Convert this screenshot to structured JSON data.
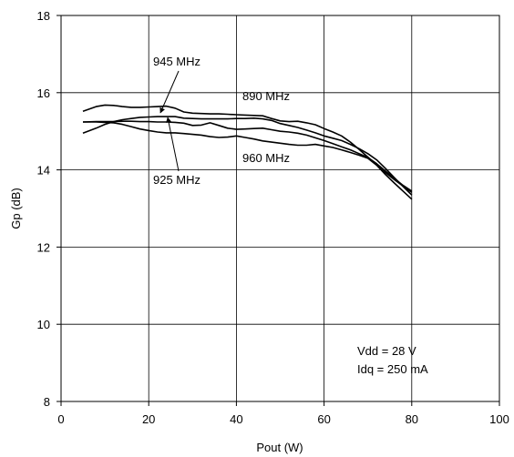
{
  "chart_data": {
    "type": "line",
    "title": "",
    "xlabel": "Pout (W)",
    "ylabel": "Gp (dB)",
    "xlim": [
      0,
      100
    ],
    "ylim": [
      8,
      18
    ],
    "xticks": [
      0,
      20,
      40,
      60,
      80,
      100
    ],
    "yticks": [
      8,
      10,
      12,
      14,
      16,
      18
    ],
    "grid": true,
    "series": [
      {
        "name": "945 MHz",
        "x": [
          5,
          8,
          10,
          12,
          14,
          16,
          18,
          20,
          22,
          24,
          26,
          28,
          30,
          32,
          34,
          36,
          38,
          40,
          42,
          44,
          46,
          48,
          50,
          52,
          54,
          56,
          58,
          60,
          62,
          64,
          66,
          68,
          70,
          72,
          74,
          76,
          78,
          80
        ],
        "y": [
          15.52,
          15.64,
          15.68,
          15.67,
          15.64,
          15.62,
          15.62,
          15.63,
          15.64,
          15.65,
          15.6,
          15.5,
          15.47,
          15.46,
          15.45,
          15.45,
          15.44,
          15.43,
          15.42,
          15.41,
          15.4,
          15.33,
          15.27,
          15.25,
          15.26,
          15.22,
          15.17,
          15.07,
          14.98,
          14.88,
          14.72,
          14.53,
          14.33,
          14.13,
          13.93,
          13.75,
          13.58,
          13.42
        ]
      },
      {
        "name": "890 MHz",
        "x": [
          5,
          8,
          10,
          12,
          14,
          16,
          18,
          20,
          22,
          24,
          26,
          28,
          30,
          32,
          34,
          36,
          38,
          40,
          42,
          44,
          46,
          48,
          50,
          52,
          54,
          56,
          58,
          60,
          62,
          64,
          66,
          68,
          70,
          72,
          74,
          76,
          78,
          80
        ],
        "y": [
          14.95,
          15.08,
          15.18,
          15.25,
          15.3,
          15.33,
          15.36,
          15.37,
          15.38,
          15.38,
          15.38,
          15.34,
          15.33,
          15.32,
          15.32,
          15.32,
          15.32,
          15.33,
          15.33,
          15.34,
          15.32,
          15.28,
          15.2,
          15.15,
          15.1,
          15.03,
          14.96,
          14.88,
          14.82,
          14.76,
          14.66,
          14.55,
          14.42,
          14.26,
          14.04,
          13.8,
          13.57,
          13.35
        ]
      },
      {
        "name": "925 MHz",
        "x": [
          5,
          8,
          10,
          12,
          14,
          16,
          18,
          20,
          22,
          24,
          26,
          28,
          30,
          32,
          34,
          36,
          38,
          40,
          42,
          44,
          46,
          48,
          50,
          52,
          54,
          56,
          58,
          60,
          62,
          64,
          66,
          68,
          70,
          72,
          74,
          76,
          78,
          80
        ],
        "y": [
          15.24,
          15.24,
          15.23,
          15.22,
          15.18,
          15.12,
          15.06,
          15.02,
          14.98,
          14.96,
          14.96,
          14.94,
          14.92,
          14.9,
          14.86,
          14.84,
          14.85,
          14.88,
          14.84,
          14.8,
          14.75,
          14.72,
          14.69,
          14.66,
          14.64,
          14.64,
          14.66,
          14.62,
          14.58,
          14.52,
          14.45,
          14.38,
          14.3,
          14.12,
          13.88,
          13.66,
          13.45,
          13.24
        ]
      },
      {
        "name": "960 MHz",
        "x": [
          5,
          8,
          10,
          12,
          14,
          16,
          18,
          20,
          22,
          24,
          26,
          28,
          30,
          32,
          34,
          36,
          38,
          40,
          42,
          44,
          46,
          48,
          50,
          52,
          54,
          56,
          58,
          60,
          62,
          64,
          66,
          68,
          70,
          72,
          74,
          76,
          78,
          80
        ],
        "y": [
          15.24,
          15.25,
          15.25,
          15.25,
          15.26,
          15.26,
          15.25,
          15.25,
          15.24,
          15.24,
          15.23,
          15.21,
          15.15,
          15.16,
          15.22,
          15.15,
          15.08,
          15.05,
          15.06,
          15.07,
          15.08,
          15.04,
          15.0,
          14.98,
          14.95,
          14.9,
          14.83,
          14.76,
          14.68,
          14.6,
          14.52,
          14.42,
          14.32,
          14.16,
          13.97,
          13.78,
          13.6,
          13.45
        ]
      }
    ],
    "annotations": [
      "Vdd = 28 V",
      "Idq = 250 mA"
    ]
  }
}
